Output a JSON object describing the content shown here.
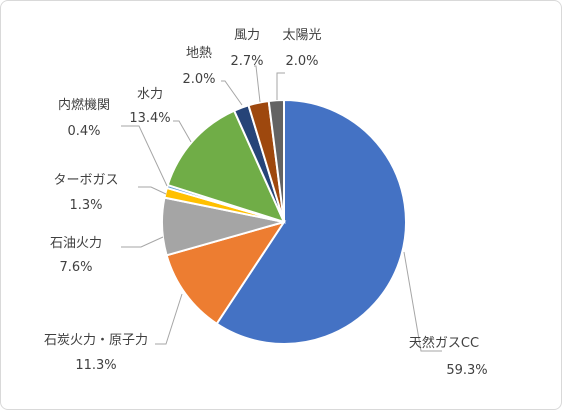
{
  "chart_data": {
    "type": "pie",
    "title": "",
    "slices": [
      {
        "name": "天然ガスCC",
        "value": 59.3,
        "pct_label": "59.3%",
        "color": "#4472c4"
      },
      {
        "name": "石炭火力・原子力",
        "value": 11.3,
        "pct_label": "11.3%",
        "color": "#ed7d31"
      },
      {
        "name": "石油火力",
        "value": 7.6,
        "pct_label": "7.6%",
        "color": "#a5a5a5"
      },
      {
        "name": "ターボガス",
        "value": 1.3,
        "pct_label": "1.3%",
        "color": "#ffc000"
      },
      {
        "name": "内燃機関",
        "value": 0.4,
        "pct_label": "0.4%",
        "color": "#5b9bd5"
      },
      {
        "name": "水力",
        "value": 13.4,
        "pct_label": "13.4%",
        "color": "#70ad47"
      },
      {
        "name": "地熱",
        "value": 2.0,
        "pct_label": "2.0%",
        "color": "#264478"
      },
      {
        "name": "風力",
        "value": 2.7,
        "pct_label": "2.7%",
        "color": "#9e480e"
      },
      {
        "name": "太陽光",
        "value": 2.0,
        "pct_label": "2.0%",
        "color": "#636363"
      }
    ]
  }
}
